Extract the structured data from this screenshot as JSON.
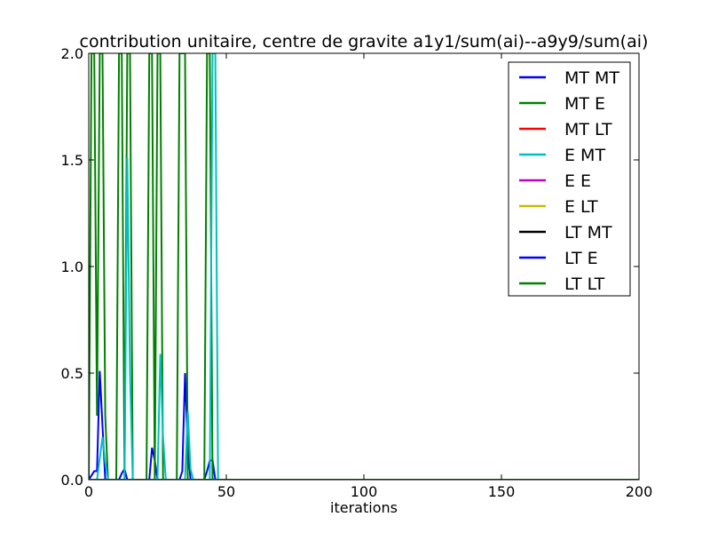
{
  "chart_data": {
    "type": "line",
    "title": "contribution unitaire, centre de gravite a1y1/sum(ai)--a9y9/sum(ai)",
    "xlabel": "iterations",
    "ylabel": "",
    "xlim": [
      0,
      200
    ],
    "ylim": [
      0,
      2.0
    ],
    "xticks": [
      0,
      50,
      100,
      150,
      200
    ],
    "xtick_labels": [
      "0",
      "50",
      "100",
      "150",
      "200"
    ],
    "yticks": [
      0.0,
      0.5,
      1.0,
      1.5,
      2.0
    ],
    "ytick_labels": [
      "0.0",
      "0.5",
      "1.0",
      "1.5",
      "2.0"
    ],
    "grid": false,
    "legend_position": "top-right",
    "series": [
      {
        "name": "MT MT",
        "color": "#0000ff",
        "points": [
          [
            0,
            0
          ],
          [
            2,
            0.04
          ],
          [
            3,
            0.04
          ],
          [
            4,
            0.51
          ],
          [
            5,
            0.25
          ],
          [
            6,
            0
          ],
          [
            11,
            0
          ],
          [
            12,
            0.03
          ],
          [
            13,
            0.05
          ],
          [
            14,
            0
          ],
          [
            22,
            0
          ],
          [
            23,
            0.15
          ],
          [
            24,
            0.09
          ],
          [
            25,
            0
          ],
          [
            33,
            0
          ],
          [
            34,
            0.04
          ],
          [
            35,
            0.5
          ],
          [
            36,
            0.15
          ],
          [
            37,
            0
          ],
          [
            42,
            0
          ],
          [
            43,
            0.04
          ],
          [
            44,
            0.09
          ],
          [
            45,
            0.09
          ],
          [
            46,
            0
          ],
          [
            200,
            0
          ]
        ]
      },
      {
        "name": "MT E",
        "color": "#008000",
        "points": [
          [
            0,
            0
          ],
          [
            1,
            2.0
          ],
          [
            2,
            2.0
          ],
          [
            3,
            0.3
          ],
          [
            4,
            2.0
          ],
          [
            5,
            2.0
          ],
          [
            6,
            0.3
          ],
          [
            7,
            0
          ],
          [
            10,
            0
          ],
          [
            11,
            2.0
          ],
          [
            12,
            2.0
          ],
          [
            13,
            0
          ],
          [
            14,
            2.0
          ],
          [
            15,
            2.0
          ],
          [
            16,
            0
          ],
          [
            21,
            0
          ],
          [
            22,
            2.0
          ],
          [
            23,
            2.0
          ],
          [
            24,
            0
          ],
          [
            25,
            2.0
          ],
          [
            26,
            2.0
          ],
          [
            27,
            0
          ],
          [
            32,
            0
          ],
          [
            33,
            2.0
          ],
          [
            34,
            2.0
          ],
          [
            35,
            2.0
          ],
          [
            36,
            0
          ],
          [
            42,
            0
          ],
          [
            43,
            2.0
          ],
          [
            44,
            2.0
          ],
          [
            45,
            0
          ],
          [
            200,
            0
          ]
        ]
      },
      {
        "name": "MT LT",
        "color": "#ff0000",
        "points": [
          [
            0,
            0
          ],
          [
            200,
            0
          ]
        ]
      },
      {
        "name": "E MT",
        "color": "#00bfbf",
        "points": [
          [
            0,
            0
          ],
          [
            3,
            0
          ],
          [
            4,
            0.1
          ],
          [
            5,
            0.2
          ],
          [
            6,
            0.08
          ],
          [
            7,
            0
          ],
          [
            13,
            0
          ],
          [
            14,
            1.51
          ],
          [
            15,
            0.5
          ],
          [
            16,
            0
          ],
          [
            25,
            0
          ],
          [
            26,
            0.59
          ],
          [
            27,
            0.2
          ],
          [
            28,
            0
          ],
          [
            35,
            0
          ],
          [
            36,
            0.32
          ],
          [
            37,
            0.05
          ],
          [
            38,
            0
          ],
          [
            44,
            0
          ],
          [
            45,
            2.0
          ],
          [
            46,
            2.0
          ],
          [
            47,
            0
          ],
          [
            200,
            0
          ]
        ]
      },
      {
        "name": "E E",
        "color": "#bf00bf",
        "points": [
          [
            0,
            0
          ],
          [
            200,
            0
          ]
        ]
      },
      {
        "name": "E LT",
        "color": "#bfbf00",
        "points": [
          [
            0,
            0
          ],
          [
            200,
            0
          ]
        ]
      },
      {
        "name": "LT MT",
        "color": "#000000",
        "points": [
          [
            0,
            0
          ],
          [
            200,
            0
          ]
        ]
      },
      {
        "name": "LT E",
        "color": "#0000ff",
        "points": [
          [
            0,
            0
          ],
          [
            200,
            0
          ]
        ]
      },
      {
        "name": "LT LT",
        "color": "#008000",
        "points": [
          [
            0,
            0
          ],
          [
            200,
            0
          ]
        ]
      }
    ]
  }
}
